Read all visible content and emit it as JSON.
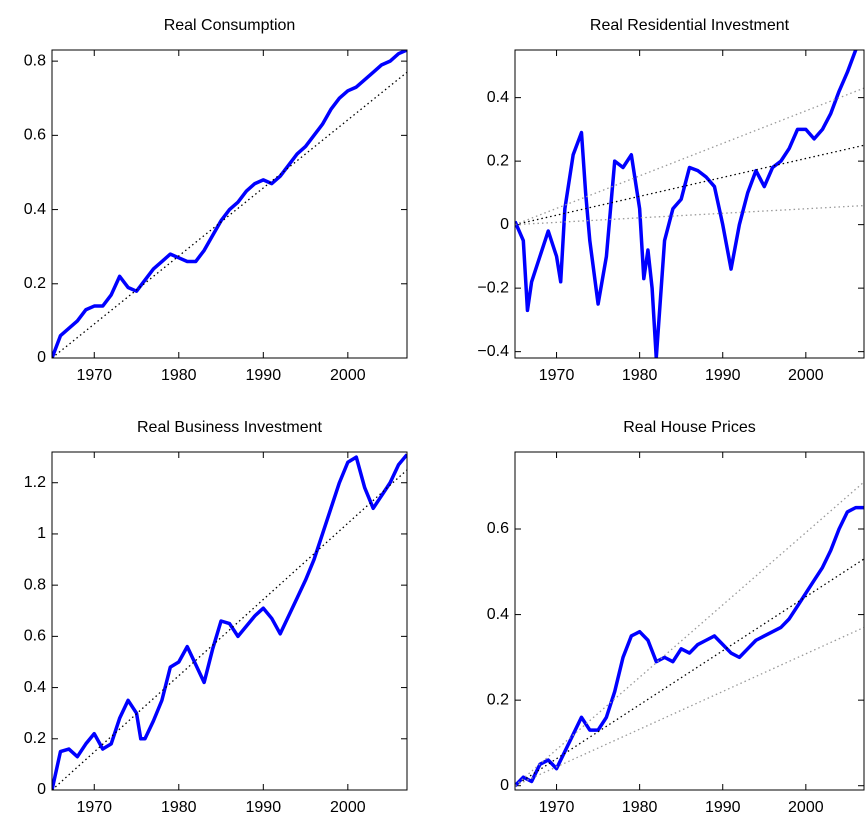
{
  "chart_data": [
    {
      "type": "line",
      "title": "Real Consumption",
      "xlim": [
        1965,
        2007
      ],
      "xticks": [
        1970,
        1980,
        1990,
        2000
      ],
      "ylim": [
        0,
        0.83
      ],
      "yticks": [
        0,
        0.2,
        0.4,
        0.6,
        0.8
      ],
      "series": [
        {
          "color": "#0000ff",
          "linestyle": "solid",
          "x": [
            1965,
            1966,
            1967,
            1968,
            1969,
            1970,
            1971,
            1972,
            1973,
            1974,
            1975,
            1976,
            1977,
            1978,
            1979,
            1980,
            1981,
            1982,
            1983,
            1984,
            1985,
            1986,
            1987,
            1988,
            1989,
            1990,
            1991,
            1992,
            1993,
            1994,
            1995,
            1996,
            1997,
            1998,
            1999,
            2000,
            2001,
            2002,
            2003,
            2004,
            2005,
            2006,
            2007
          ],
          "values": [
            0,
            0.06,
            0.08,
            0.1,
            0.13,
            0.14,
            0.14,
            0.17,
            0.22,
            0.19,
            0.18,
            0.21,
            0.24,
            0.26,
            0.28,
            0.27,
            0.26,
            0.26,
            0.29,
            0.33,
            0.37,
            0.4,
            0.42,
            0.45,
            0.47,
            0.48,
            0.47,
            0.49,
            0.52,
            0.55,
            0.57,
            0.6,
            0.63,
            0.67,
            0.7,
            0.72,
            0.73,
            0.75,
            0.77,
            0.79,
            0.8,
            0.82,
            0.83
          ]
        },
        {
          "color": "#000000",
          "linestyle": "dotted",
          "x": [
            1965,
            2007
          ],
          "values": [
            0,
            0.77
          ]
        }
      ]
    },
    {
      "type": "line",
      "title": "Real Residential Investment",
      "xlim": [
        1965,
        2007
      ],
      "xticks": [
        1970,
        1980,
        1990,
        2000
      ],
      "ylim": [
        -0.42,
        0.55
      ],
      "yticks": [
        {
          "value": -0.4,
          "label": "−0.4"
        },
        {
          "value": -0.2,
          "label": "−0.2"
        },
        0,
        0.2,
        0.4
      ],
      "series": [
        {
          "color": "#0000ff",
          "linestyle": "solid",
          "x": [
            1965,
            1966,
            1966.5,
            1967,
            1968,
            1969,
            1970,
            1970.5,
            1971,
            1972,
            1973,
            1973.5,
            1974,
            1975,
            1976,
            1977,
            1978,
            1979,
            1980,
            1980.5,
            1981,
            1981.5,
            1982,
            1983,
            1984,
            1985,
            1986,
            1987,
            1988,
            1989,
            1990,
            1991,
            1992,
            1993,
            1994,
            1995,
            1996,
            1997,
            1998,
            1999,
            2000,
            2001,
            2002,
            2003,
            2004,
            2005,
            2006,
            2007
          ],
          "values": [
            0.01,
            -0.05,
            -0.27,
            -0.18,
            -0.1,
            -0.02,
            -0.1,
            -0.18,
            0.05,
            0.22,
            0.29,
            0.1,
            -0.05,
            -0.25,
            -0.1,
            0.2,
            0.18,
            0.22,
            0.05,
            -0.17,
            -0.08,
            -0.2,
            -0.42,
            -0.05,
            0.05,
            0.08,
            0.18,
            0.17,
            0.15,
            0.12,
            0,
            -0.14,
            0,
            0.1,
            0.17,
            0.12,
            0.18,
            0.2,
            0.24,
            0.3,
            0.3,
            0.27,
            0.3,
            0.35,
            0.42,
            0.48,
            0.55,
            0.58
          ]
        },
        {
          "color": "#000000",
          "linestyle": "dotted",
          "x": [
            1965,
            2007
          ],
          "values": [
            0,
            0.25
          ]
        },
        {
          "color": "#999999",
          "linestyle": "dotted",
          "x": [
            1965,
            2007
          ],
          "values": [
            0,
            0.43
          ]
        },
        {
          "color": "#999999",
          "linestyle": "dotted",
          "x": [
            1965,
            2007
          ],
          "values": [
            0,
            0.06
          ]
        }
      ]
    },
    {
      "type": "line",
      "title": "Real Business Investment",
      "xlim": [
        1965,
        2007
      ],
      "xticks": [
        1970,
        1980,
        1990,
        2000
      ],
      "ylim": [
        0,
        1.32
      ],
      "yticks": [
        0,
        0.2,
        0.4,
        0.6,
        0.8,
        1,
        1.2
      ],
      "series": [
        {
          "color": "#0000ff",
          "linestyle": "solid",
          "x": [
            1965,
            1966,
            1967,
            1968,
            1969,
            1970,
            1971,
            1972,
            1973,
            1974,
            1975,
            1975.5,
            1976,
            1977,
            1978,
            1979,
            1980,
            1981,
            1982,
            1983,
            1984,
            1985,
            1986,
            1987,
            1988,
            1989,
            1990,
            1991,
            1992,
            1993,
            1994,
            1995,
            1996,
            1997,
            1998,
            1999,
            2000,
            2001,
            2002,
            2003,
            2004,
            2005,
            2006,
            2007
          ],
          "values": [
            0,
            0.15,
            0.16,
            0.13,
            0.18,
            0.22,
            0.16,
            0.18,
            0.28,
            0.35,
            0.3,
            0.2,
            0.2,
            0.27,
            0.35,
            0.48,
            0.5,
            0.56,
            0.49,
            0.42,
            0.55,
            0.66,
            0.65,
            0.6,
            0.64,
            0.68,
            0.71,
            0.67,
            0.61,
            0.68,
            0.75,
            0.82,
            0.9,
            1.0,
            1.1,
            1.2,
            1.28,
            1.3,
            1.18,
            1.1,
            1.15,
            1.2,
            1.27,
            1.31
          ]
        },
        {
          "color": "#000000",
          "linestyle": "dotted",
          "x": [
            1965,
            2007
          ],
          "values": [
            0,
            1.25
          ]
        }
      ]
    },
    {
      "type": "line",
      "title": "Real House Prices",
      "xlim": [
        1965,
        2007
      ],
      "xticks": [
        1970,
        1980,
        1990,
        2000
      ],
      "ylim": [
        -0.01,
        0.78
      ],
      "yticks": [
        0,
        0.2,
        0.4,
        0.6
      ],
      "series": [
        {
          "color": "#0000ff",
          "linestyle": "solid",
          "x": [
            1965,
            1966,
            1967,
            1968,
            1969,
            1970,
            1971,
            1972,
            1973,
            1974,
            1975,
            1976,
            1977,
            1978,
            1979,
            1980,
            1981,
            1982,
            1983,
            1984,
            1985,
            1986,
            1987,
            1988,
            1989,
            1990,
            1991,
            1992,
            1993,
            1994,
            1995,
            1996,
            1997,
            1998,
            1999,
            2000,
            2001,
            2002,
            2003,
            2004,
            2005,
            2006,
            2007
          ],
          "values": [
            0,
            0.02,
            0.01,
            0.05,
            0.06,
            0.04,
            0.08,
            0.12,
            0.16,
            0.13,
            0.13,
            0.16,
            0.22,
            0.3,
            0.35,
            0.36,
            0.34,
            0.29,
            0.3,
            0.29,
            0.32,
            0.31,
            0.33,
            0.34,
            0.35,
            0.33,
            0.31,
            0.3,
            0.32,
            0.34,
            0.35,
            0.36,
            0.37,
            0.39,
            0.42,
            0.45,
            0.48,
            0.51,
            0.55,
            0.6,
            0.64,
            0.65,
            0.65
          ]
        },
        {
          "color": "#000000",
          "linestyle": "dotted",
          "x": [
            1965,
            2007
          ],
          "values": [
            0,
            0.53
          ]
        },
        {
          "color": "#999999",
          "linestyle": "dotted",
          "x": [
            1965,
            2007
          ],
          "values": [
            0,
            0.71
          ]
        },
        {
          "color": "#999999",
          "linestyle": "dotted",
          "x": [
            1965,
            2007
          ],
          "values": [
            0,
            0.37
          ]
        }
      ]
    }
  ]
}
